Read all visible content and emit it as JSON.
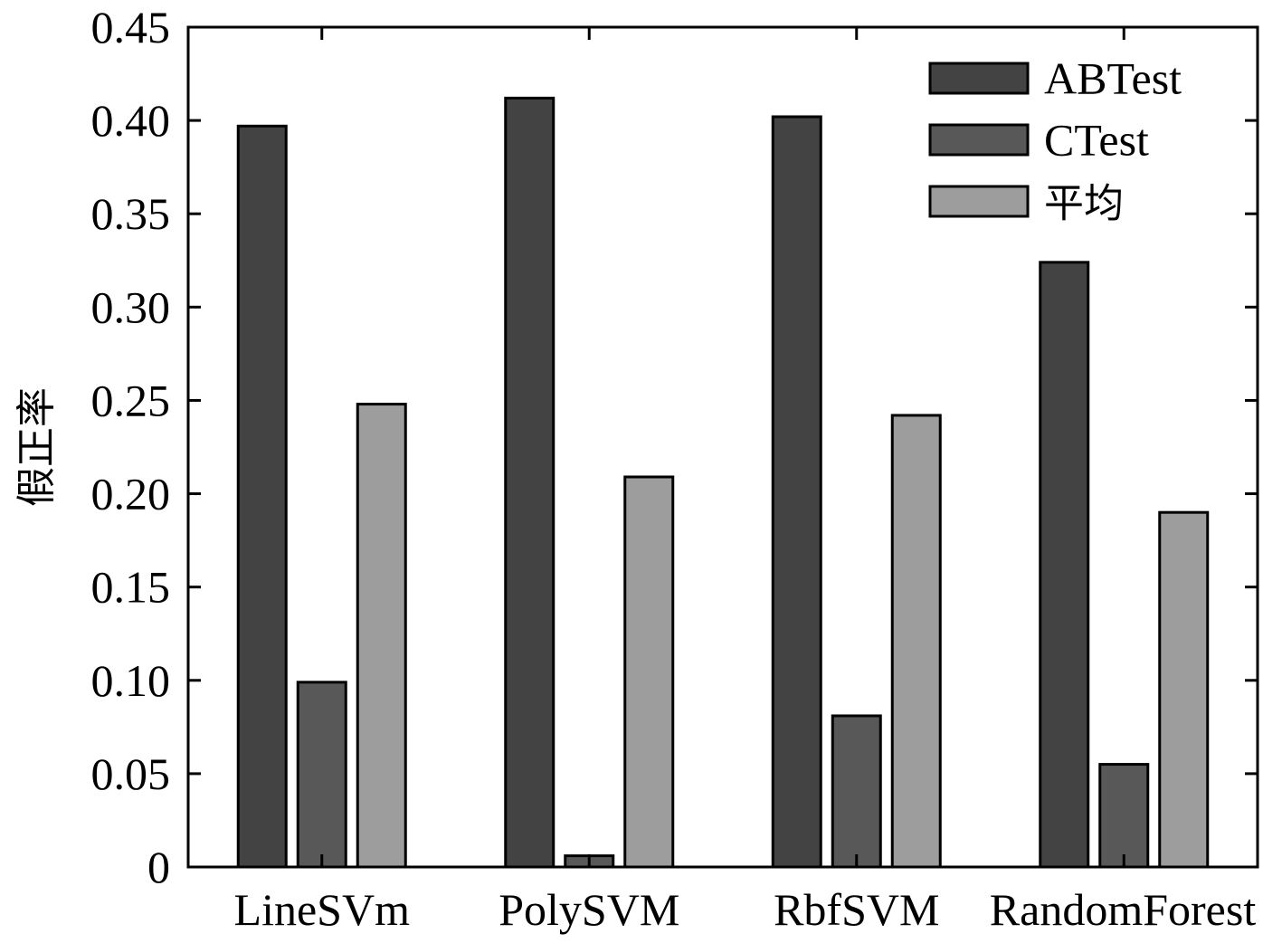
{
  "chart_data": {
    "type": "bar",
    "title": "",
    "xlabel": "",
    "ylabel": "假正率",
    "categories": [
      "LineSVm",
      "PolySVM",
      "RbfSVM",
      "RandomForest"
    ],
    "series": [
      {
        "name": "ABTest",
        "color": "#434343",
        "values": [
          0.397,
          0.412,
          0.402,
          0.324
        ]
      },
      {
        "name": "CTest",
        "color": "#585858",
        "values": [
          0.099,
          0.006,
          0.081,
          0.055
        ]
      },
      {
        "name": "平均",
        "color": "#9d9d9d",
        "values": [
          0.248,
          0.209,
          0.242,
          0.19
        ]
      }
    ],
    "ylim": [
      0,
      0.45
    ],
    "yticks": [
      0,
      0.05,
      0.1,
      0.15,
      0.2,
      0.25,
      0.3,
      0.35,
      0.4,
      0.45
    ],
    "ytick_labels": [
      "0",
      "0.05",
      "0.10",
      "0.15",
      "0.20",
      "0.25",
      "0.30",
      "0.35",
      "0.40",
      "0.45"
    ],
    "legend_position": "top-right",
    "grid": false
  }
}
